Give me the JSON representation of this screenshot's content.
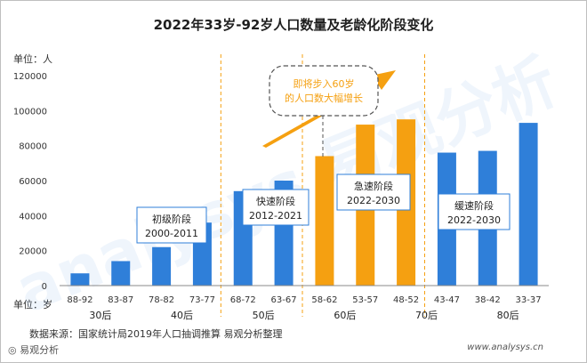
{
  "chart_data": {
    "type": "bar",
    "title": "2022年33岁-92岁人口数量及老龄化阶段变化",
    "y_unit_label": "单位：人",
    "x_unit_label": "单位：岁",
    "ylim": [
      0,
      120000
    ],
    "yticks": [
      "0",
      "20000",
      "40000",
      "60000",
      "80000",
      "100000",
      "120000"
    ],
    "grid": false,
    "categories": [
      "88-92",
      "83-87",
      "78-82",
      "73-77",
      "68-72",
      "63-67",
      "58-62",
      "53-57",
      "48-52",
      "43-47",
      "38-42",
      "33-37"
    ],
    "values": [
      7000,
      14000,
      22000,
      36000,
      54000,
      60000,
      74000,
      92000,
      95000,
      76000,
      77000,
      93000
    ],
    "colors": [
      "#2f7fd9",
      "#2f7fd9",
      "#2f7fd9",
      "#2f7fd9",
      "#2f7fd9",
      "#2f7fd9",
      "#f5a011",
      "#f5a011",
      "#f5a011",
      "#2f7fd9",
      "#2f7fd9",
      "#2f7fd9"
    ],
    "generations": [
      {
        "label": "30后",
        "from": 0,
        "to": 1
      },
      {
        "label": "40后",
        "from": 2,
        "to": 3
      },
      {
        "label": "50后",
        "from": 4,
        "to": 5
      },
      {
        "label": "60后",
        "from": 6,
        "to": 7
      },
      {
        "label": "70后",
        "from": 8,
        "to": 9
      },
      {
        "label": "80后",
        "from": 10,
        "to": 11
      }
    ],
    "stages": [
      {
        "label": "初级阶段",
        "years": "2000-2011"
      },
      {
        "label": "快速阶段",
        "years": "2012-2021"
      },
      {
        "label": "急速阶段",
        "years": "2022-2030"
      },
      {
        "label": "缓速阶段",
        "years": "2022-2030"
      }
    ],
    "callout": "即将步入60岁的人口数大幅增长"
  },
  "colors": {
    "blue": "#2f7fd9",
    "orange": "#f5a011",
    "divider": "#f5a011"
  },
  "source": "数据来源：国家统计局2019年人口抽调推算 易观分析整理",
  "footer": {
    "brand": "◎ 易观分析",
    "site": "www.analysys.cn"
  },
  "watermark": "analysys 易观分析"
}
